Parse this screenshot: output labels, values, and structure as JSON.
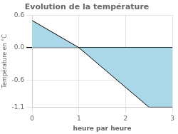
{
  "chart_data": {
    "type": "area",
    "title": "Evolution de la température",
    "xlabel": "heure par heure",
    "ylabel": "Température en °C",
    "x": [
      0,
      1,
      2.5,
      3
    ],
    "values": [
      0.5,
      0.0,
      -1.1,
      -1.1
    ],
    "color": "#aad8e8",
    "xlim": [
      0,
      3
    ],
    "ylim": [
      -1.1,
      0.6
    ],
    "xticks": [
      0,
      1,
      2,
      3
    ],
    "yticks": [
      -1.1,
      -0.6,
      {
        "value": 0,
        "label": "0.0"
      },
      0.6
    ],
    "grid": true
  }
}
